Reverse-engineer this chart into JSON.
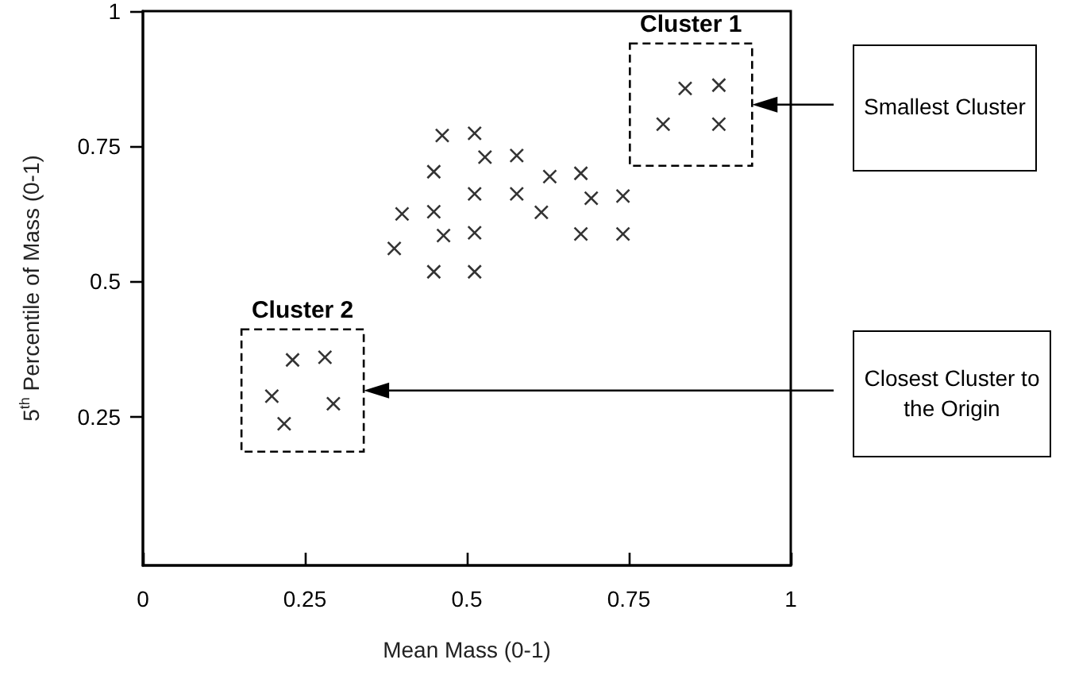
{
  "chart_data": {
    "type": "scatter",
    "xlabel": "Mean Mass (0-1)",
    "ylabel": "5$^{th}$ Percentile of Mass (0-1)",
    "xlim": [
      0,
      1
    ],
    "xticks": [
      0,
      0.25,
      0.5,
      0.75,
      1
    ],
    "ylim": [
      -0.025,
      1
    ],
    "yticks": [
      0.25,
      0.5,
      0.75,
      1
    ],
    "marker": "cross",
    "series": [
      {
        "color": "#000000",
        "x": [
          0.462,
          0.512,
          0.528,
          0.577,
          0.449,
          0.628,
          0.676,
          0.512,
          0.577,
          0.692,
          0.741,
          0.4,
          0.449,
          0.615,
          0.464,
          0.512,
          0.676,
          0.741,
          0.388,
          0.449,
          0.512
        ],
        "values": [
          0.77,
          0.774,
          0.73,
          0.733,
          0.703,
          0.694,
          0.7,
          0.662,
          0.662,
          0.654,
          0.658,
          0.625,
          0.629,
          0.628,
          0.585,
          0.59,
          0.588,
          0.588,
          0.561,
          0.518,
          0.518
        ]
      },
      {
        "name": "Cluster 1",
        "color": "#000000",
        "x": [
          0.837,
          0.889,
          0.803,
          0.889
        ],
        "values": [
          0.857,
          0.863,
          0.791,
          0.791
        ]
      },
      {
        "name": "Cluster 2",
        "color": "#000000",
        "x": [
          0.231,
          0.281,
          0.199,
          0.294,
          0.218
        ],
        "values": [
          0.355,
          0.36,
          0.288,
          0.274,
          0.237
        ]
      }
    ],
    "annotations": [
      "Smallest Cluster",
      "Closest Cluster to the Origin"
    ]
  }
}
